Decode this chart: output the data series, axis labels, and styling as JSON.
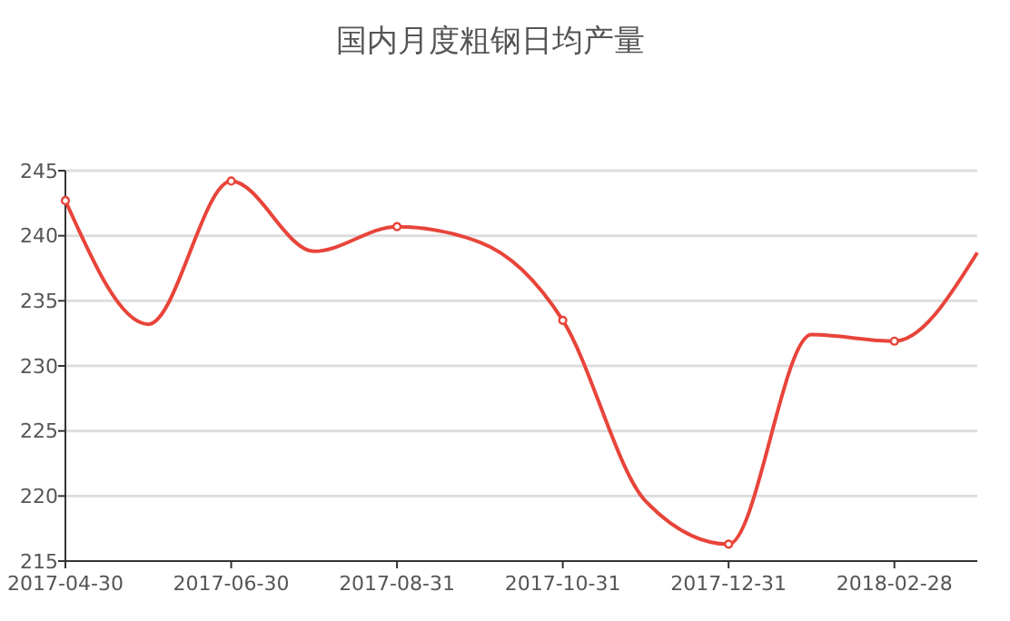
{
  "chart_data": {
    "type": "line",
    "title": "国内月度粗钢日均产量",
    "categories": [
      "2017-04-30",
      null,
      "2017-06-30",
      null,
      "2017-08-31",
      null,
      "2017-10-31",
      null,
      "2017-12-31",
      null,
      "2018-02-28",
      null
    ],
    "series": [
      {
        "color": "#e8443a",
        "values": [
          242.7,
          233.2,
          244.2,
          238.8,
          240.7,
          239.5,
          233.5,
          219.6,
          216.3,
          232.4,
          231.9,
          238.7
        ]
      }
    ],
    "ylim": [
      215,
      245
    ],
    "yticks": [
      215,
      220,
      225,
      230,
      235,
      240,
      245
    ],
    "grid": "y",
    "marker": "circle",
    "line_style": "solid"
  }
}
